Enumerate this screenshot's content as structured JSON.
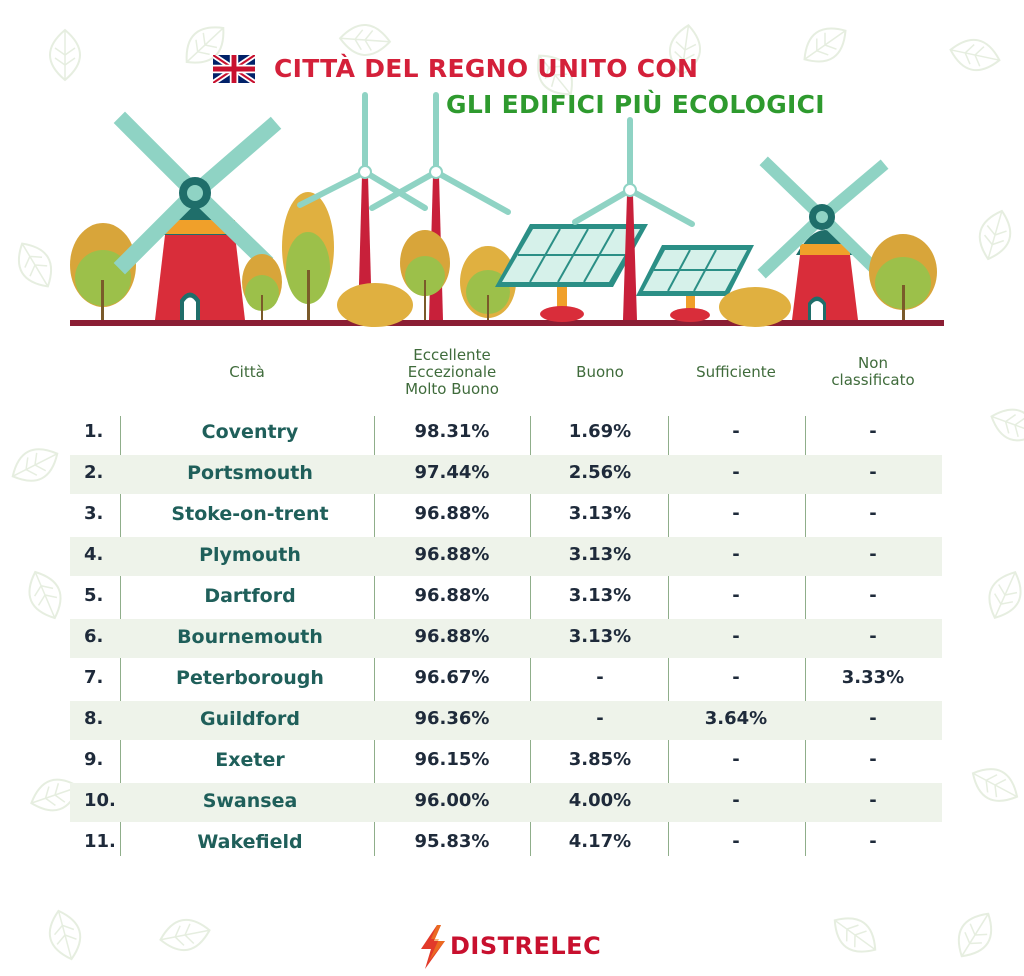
{
  "title": {
    "line1": "CITTÀ DEL REGNO UNITO CON",
    "line2": "GLI EDIFICI PIÙ ECOLOGICI"
  },
  "colors": {
    "title_red": "#d4203a",
    "title_green": "#2e9a2e",
    "city_teal": "#1f5f5a",
    "row_stripe": "#eef3ea",
    "brand_red": "#c8102e"
  },
  "icons": [
    "uk-flag-icon",
    "windmill-icon",
    "wind-turbine-icon",
    "solar-panel-icon",
    "tree-icon",
    "leaf-icon",
    "bolt-icon"
  ],
  "brand": "DISTRELEC",
  "chart_data": {
    "type": "table",
    "columns": [
      {
        "key": "city",
        "label_lines": [
          "Città"
        ]
      },
      {
        "key": "excellent",
        "label_lines": [
          "Eccellente",
          "Eccezionale",
          "Molto Buono"
        ]
      },
      {
        "key": "good",
        "label_lines": [
          "Buono"
        ]
      },
      {
        "key": "sufficient",
        "label_lines": [
          "Sufficiente"
        ]
      },
      {
        "key": "unrated",
        "label_lines": [
          "Non",
          "classificato"
        ]
      }
    ],
    "rows": [
      {
        "rank": "1.",
        "city": "Coventry",
        "excellent": "98.31%",
        "good": "1.69%",
        "sufficient": "-",
        "unrated": "-"
      },
      {
        "rank": "2.",
        "city": "Portsmouth",
        "excellent": "97.44%",
        "good": "2.56%",
        "sufficient": "-",
        "unrated": "-"
      },
      {
        "rank": "3.",
        "city": "Stoke-on-trent",
        "excellent": "96.88%",
        "good": "3.13%",
        "sufficient": "-",
        "unrated": "-"
      },
      {
        "rank": "4.",
        "city": "Plymouth",
        "excellent": "96.88%",
        "good": "3.13%",
        "sufficient": "-",
        "unrated": "-"
      },
      {
        "rank": "5.",
        "city": "Dartford",
        "excellent": "96.88%",
        "good": "3.13%",
        "sufficient": "-",
        "unrated": "-"
      },
      {
        "rank": "6.",
        "city": "Bournemouth",
        "excellent": "96.88%",
        "good": "3.13%",
        "sufficient": "-",
        "unrated": "-"
      },
      {
        "rank": "7.",
        "city": "Peterborough",
        "excellent": "96.67%",
        "good": "-",
        "sufficient": "-",
        "unrated": "3.33%"
      },
      {
        "rank": "8.",
        "city": "Guildford",
        "excellent": "96.36%",
        "good": "-",
        "sufficient": "3.64%",
        "unrated": "-"
      },
      {
        "rank": "9.",
        "city": "Exeter",
        "excellent": "96.15%",
        "good": "3.85%",
        "sufficient": "-",
        "unrated": "-"
      },
      {
        "rank": "10.",
        "city": "Swansea",
        "excellent": "96.00%",
        "good": "4.00%",
        "sufficient": "-",
        "unrated": "-"
      },
      {
        "rank": "11.",
        "city": "Wakefield",
        "excellent": "95.83%",
        "good": "4.17%",
        "sufficient": "-",
        "unrated": "-"
      }
    ]
  }
}
